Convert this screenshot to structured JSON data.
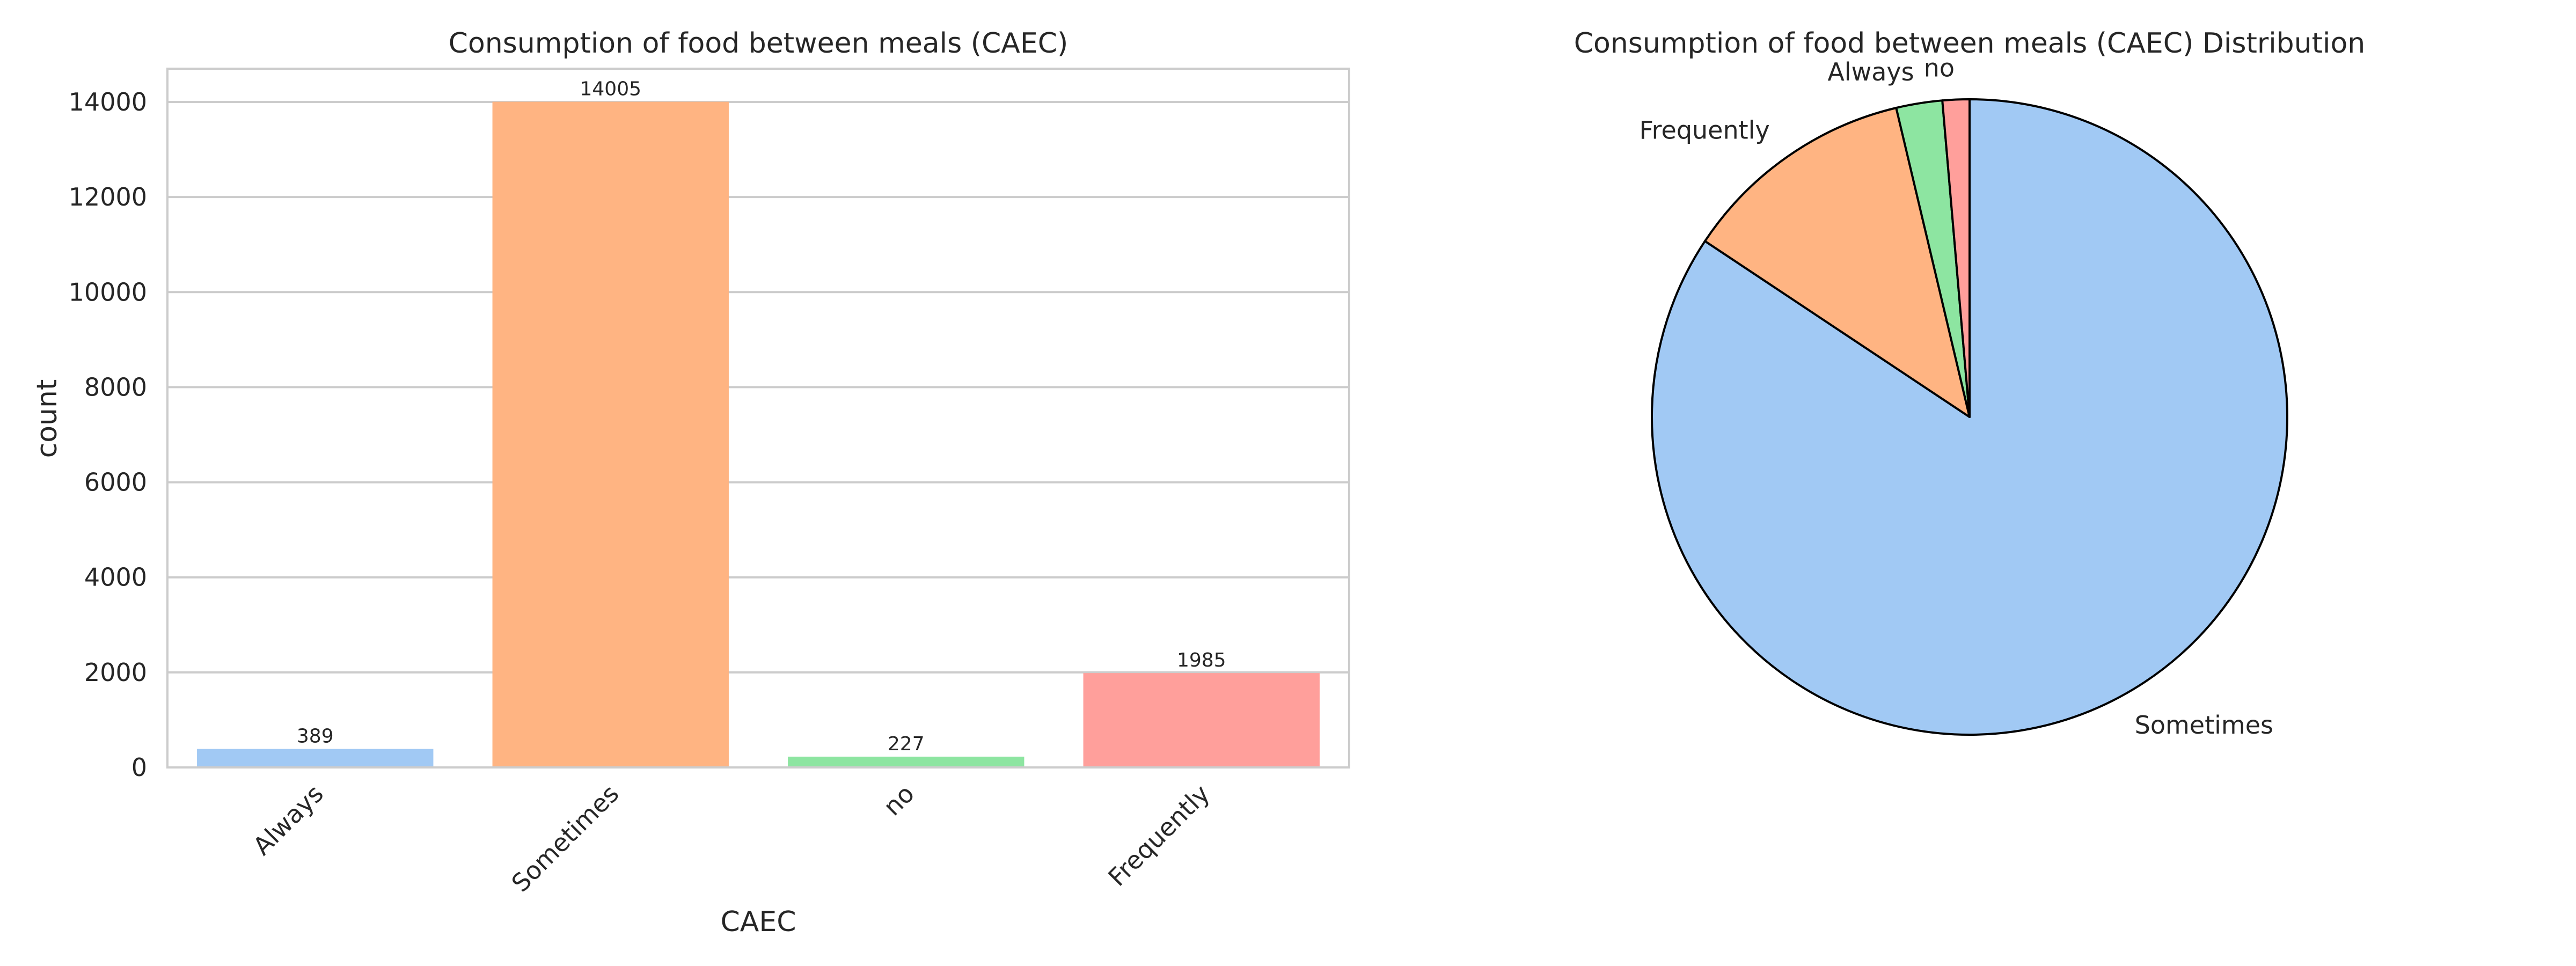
{
  "chart_data": [
    {
      "type": "bar",
      "title": "Consumption of food between meals (CAEC)",
      "xlabel": "CAEC",
      "ylabel": "count",
      "categories": [
        "Always",
        "Sometimes",
        "no",
        "Frequently"
      ],
      "values": [
        389,
        14005,
        227,
        1985
      ],
      "colors": [
        "#a1c9f4",
        "#ffb482",
        "#8de5a1",
        "#ff9f9b"
      ],
      "ylim": [
        0,
        14700
      ],
      "yticks": [
        0,
        2000,
        4000,
        6000,
        8000,
        10000,
        12000,
        14000
      ],
      "grid": true,
      "legend": "none"
    },
    {
      "type": "pie",
      "title": "Consumption of food between meals (CAEC) Distribution",
      "labels": [
        "Sometimes",
        "Frequently",
        "Always",
        "no"
      ],
      "values": [
        14005,
        1985,
        389,
        227
      ],
      "colors": [
        "#a1c9f4",
        "#ffb482",
        "#8de5a1",
        "#ff9f9b"
      ],
      "start_angle_deg": 90,
      "direction": "clockwise",
      "legend": "none"
    }
  ]
}
